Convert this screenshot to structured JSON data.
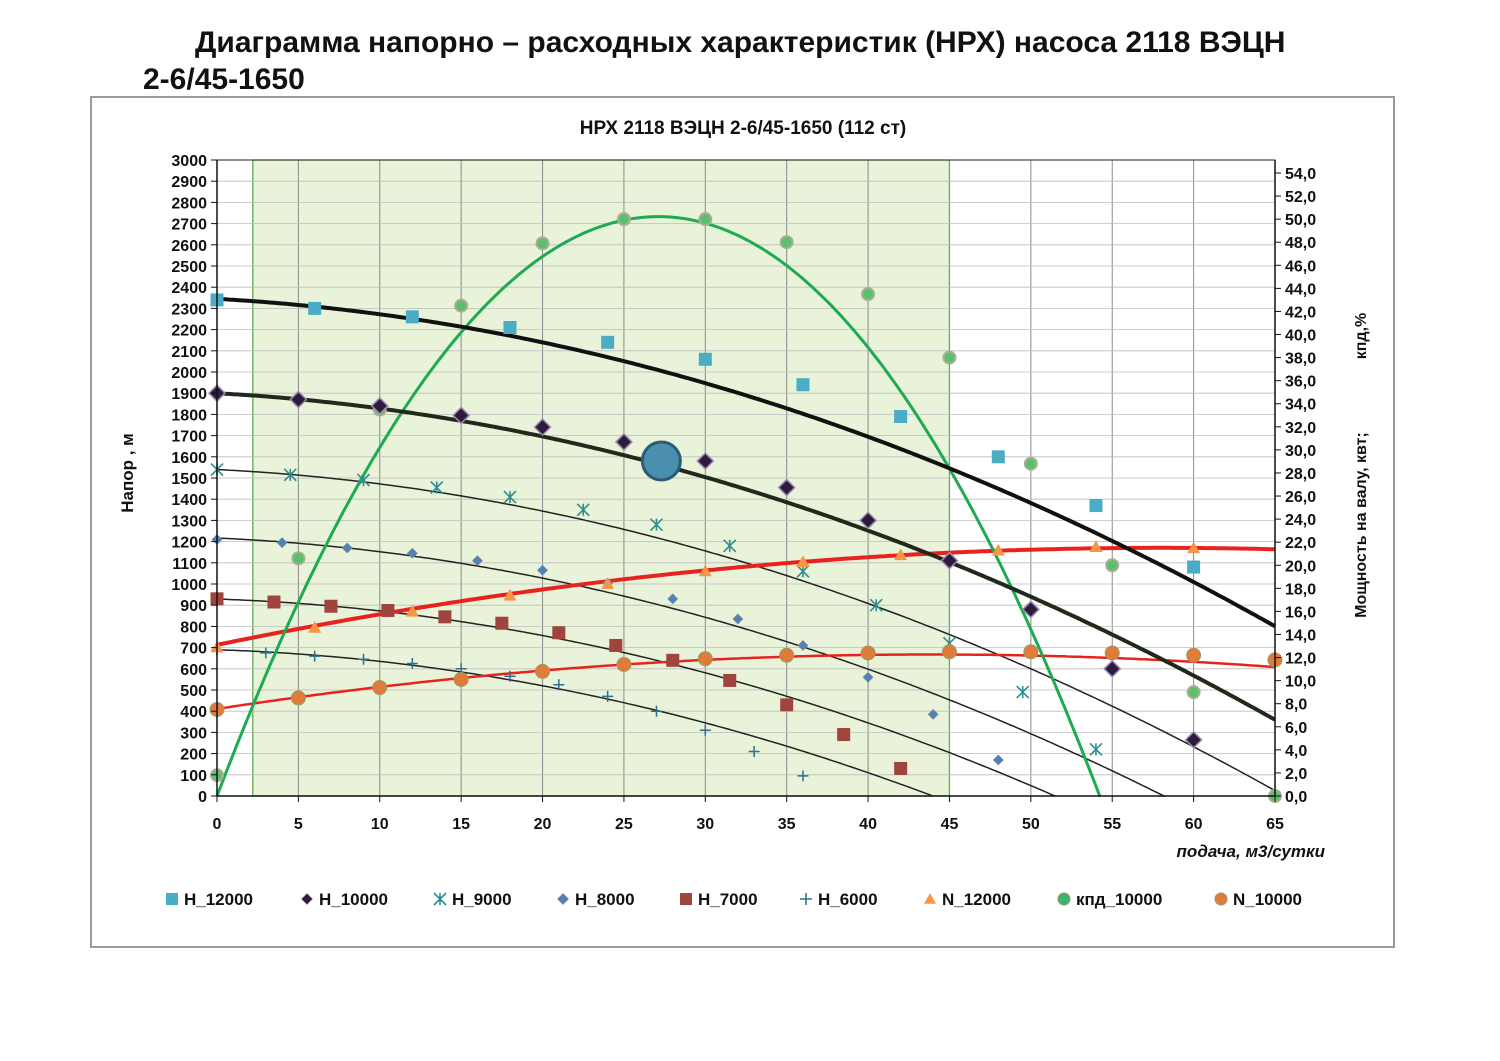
{
  "page": {
    "title_line1": "Диаграмма напорно – расходных характеристик (НРХ) насоса 2118 ВЭЦН",
    "title_line2": "2-6/45-1650"
  },
  "chart_data": {
    "type": "line",
    "title": "НРХ  2118 ВЭЦН 2-6/45-1650     (112 ст)",
    "xlabel": "подача, м3/сутки",
    "ylabel": "Напор , м",
    "y2label_top": "кпд,%",
    "y2label_bottom": "Мощность на валу, квт;",
    "xlim": [
      0,
      65
    ],
    "ylim": [
      0,
      3000
    ],
    "y2lim": [
      0,
      54
    ],
    "x_ticks": [
      0,
      5,
      10,
      15,
      20,
      25,
      30,
      35,
      40,
      45,
      50,
      55,
      60,
      65
    ],
    "y_ticks": [
      0,
      100,
      200,
      300,
      400,
      500,
      600,
      700,
      800,
      900,
      1000,
      1100,
      1200,
      1300,
      1400,
      1500,
      1600,
      1700,
      1800,
      1900,
      2000,
      2100,
      2200,
      2300,
      2400,
      2500,
      2600,
      2700,
      2800,
      2900,
      3000
    ],
    "y2_ticks": [
      "0,0",
      "2,0",
      "4,0",
      "6,0",
      "8,0",
      "10,0",
      "12,0",
      "14,0",
      "16,0",
      "18,0",
      "20,0",
      "22,0",
      "24,0",
      "26,0",
      "28,0",
      "30,0",
      "32,0",
      "34,0",
      "36,0",
      "38,0",
      "40,0",
      "42,0",
      "44,0",
      "46,0",
      "48,0",
      "50,0",
      "52,0",
      "54,0"
    ],
    "grid": true,
    "legend_position": "bottom",
    "operating_range": [
      2.2,
      45
    ],
    "operating_point": {
      "x": 27.3,
      "y": 1580
    },
    "series": [
      {
        "name": "H_12000",
        "axis": "left",
        "color": "#4BACC6",
        "marker": "square",
        "line": "#111111",
        "width": 4,
        "x": [
          0,
          6,
          12,
          18,
          24,
          30,
          36,
          42,
          48,
          54,
          60
        ],
        "y": [
          2340,
          2300,
          2260,
          2210,
          2140,
          2060,
          1940,
          1790,
          1600,
          1370,
          1080
        ],
        "fit": [
          2345,
          -4.26,
          -0.3
        ]
      },
      {
        "name": "H_10000",
        "axis": "left",
        "color": "#2E1A3A",
        "marker": "diamond",
        "line": "#1F2A1A",
        "width": 4,
        "x": [
          0,
          5,
          10,
          15,
          20,
          25,
          30,
          35,
          40,
          45,
          50,
          55,
          60
        ],
        "y": [
          1900,
          1870,
          1840,
          1795,
          1740,
          1670,
          1580,
          1455,
          1300,
          1110,
          880,
          600,
          265
        ],
        "fit": [
          1900,
          -4.2,
          -0.3
        ]
      },
      {
        "name": "H_9000",
        "axis": "left",
        "color": "#2E8E8E",
        "marker": "star",
        "line": "#222222",
        "width": 1.5,
        "x": [
          0,
          4.5,
          9,
          13.5,
          18,
          22.5,
          27,
          31.5,
          36,
          40.5,
          45,
          49.5,
          54
        ],
        "y": [
          1540,
          1515,
          1490,
          1455,
          1410,
          1350,
          1280,
          1180,
          1060,
          900,
          720,
          490,
          220
        ],
        "fit": [
          1540,
          -3.8,
          -0.3
        ]
      },
      {
        "name": "H_8000",
        "axis": "left",
        "color": "#4F81BD",
        "marker": "diamond",
        "line": "#222222",
        "width": 1.5,
        "x": [
          0,
          4,
          8,
          12,
          16,
          20,
          24,
          28,
          32,
          36,
          40,
          44,
          48
        ],
        "y": [
          1210,
          1195,
          1170,
          1145,
          1110,
          1065,
          1005,
          930,
          835,
          710,
          560,
          385,
          170
        ],
        "fit": [
          1217,
          -3.47,
          -0.3
        ]
      },
      {
        "name": "H_7000",
        "axis": "left",
        "color": "#A0453D",
        "marker": "square",
        "line": "#222222",
        "width": 1.5,
        "x": [
          0,
          3.5,
          7,
          10.5,
          14,
          17.5,
          21,
          24.5,
          28,
          31.5,
          35,
          38.5,
          42
        ],
        "y": [
          930,
          915,
          895,
          875,
          845,
          815,
          770,
          710,
          640,
          545,
          430,
          290,
          130
        ],
        "fit": [
          929,
          -2.6,
          -0.3
        ]
      },
      {
        "name": "H_6000",
        "axis": "left",
        "color": "#2E6E8E",
        "marker": "plus",
        "line": "#222222",
        "width": 1.5,
        "x": [
          0,
          3,
          6,
          9,
          12,
          15,
          18,
          21,
          24,
          27,
          30,
          33,
          36
        ],
        "y": [
          690,
          675,
          660,
          645,
          625,
          600,
          565,
          525,
          470,
          400,
          310,
          210,
          95
        ],
        "fit": [
          690,
          -2.5,
          -0.3
        ]
      },
      {
        "name": "N_12000",
        "axis": "right",
        "color": "#F79646",
        "marker": "triangle",
        "line": "#E8231E",
        "width": 4,
        "x": [
          0,
          6,
          12,
          18,
          24,
          30,
          36,
          42,
          48,
          54,
          60
        ],
        "y": [
          12.9,
          14.6,
          16.0,
          17.4,
          18.4,
          19.5,
          20.3,
          20.9,
          21.3,
          21.6,
          21.5
        ],
        "fit": [
          13.1,
          0.29,
          -0.0025
        ]
      },
      {
        "name": "кпд_10000",
        "axis": "right",
        "color": "#3CB371",
        "marker": "circle",
        "line": "#1EAA50",
        "width": 3,
        "x": [
          0,
          5,
          10,
          15,
          20,
          25,
          30,
          35,
          40,
          45,
          50,
          55,
          60,
          65
        ],
        "y": [
          1.8,
          20.6,
          33.5,
          42.5,
          47.9,
          50.0,
          50.0,
          48.0,
          43.5,
          38.0,
          28.8,
          20.0,
          9.0,
          0
        ],
        "fit": [
          0,
          3.704,
          -0.0683
        ]
      },
      {
        "name": "N_10000",
        "axis": "right",
        "color": "#E07B39",
        "marker": "circle",
        "line": "#E8231E",
        "width": 2.5,
        "x": [
          0,
          5,
          10,
          15,
          20,
          25,
          30,
          35,
          40,
          45,
          50,
          55,
          60,
          65
        ],
        "y": [
          7.5,
          8.5,
          9.4,
          10.1,
          10.8,
          11.4,
          11.9,
          12.2,
          12.4,
          12.5,
          12.5,
          12.4,
          12.2,
          11.8
        ],
        "fit": [
          7.55,
          0.215,
          -0.00245
        ]
      }
    ]
  }
}
